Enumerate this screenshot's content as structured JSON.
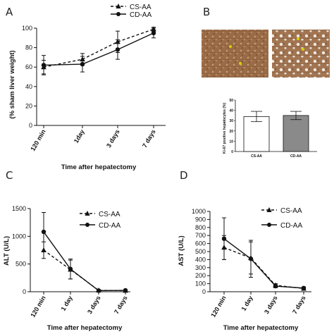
{
  "panels": {
    "A": {
      "letter": "A",
      "legend": [
        "CS-AA",
        "CD-AA"
      ],
      "xlabel": "Time after hepatectomy",
      "ylabel": "(% sham liver weight)"
    },
    "B": {
      "letter": "B",
      "ylabel": "Ki-67 positive hepatocytes (%)"
    },
    "C": {
      "letter": "C",
      "legend": [
        "CS-AA",
        "CD-AA"
      ],
      "xlabel": "Time after hepatectomy",
      "ylabel": "ALT (U/L)"
    },
    "D": {
      "letter": "D",
      "legend": [
        "CS-AA",
        "CD-AA"
      ],
      "xlabel": "Time after hepatectomy",
      "ylabel": "AST (U/L)"
    }
  },
  "chart_data": [
    {
      "panel": "A",
      "type": "line",
      "categories": [
        "120 min",
        "1day",
        "3 days",
        "7 days"
      ],
      "series": [
        {
          "name": "CS-AA",
          "values": [
            60,
            68,
            86,
            99
          ],
          "err": [
            7,
            6,
            11,
            2
          ],
          "style": "dashed",
          "marker": "triangle"
        },
        {
          "name": "CD-AA",
          "values": [
            62,
            63,
            78,
            95
          ],
          "err": [
            10,
            8,
            10,
            5
          ],
          "style": "solid",
          "marker": "circle"
        }
      ],
      "xlabel": "Time after hepatectomy",
      "ylabel": "(% sham liver weight)",
      "ylim": [
        0,
        100
      ],
      "yticks": [
        0,
        20,
        40,
        60,
        80,
        100
      ],
      "legend": "top-center"
    },
    {
      "panel": "B",
      "type": "bar",
      "categories": [
        "CS-AA",
        "CD-AA"
      ],
      "values": [
        34,
        35
      ],
      "err": [
        5,
        4
      ],
      "colors": [
        "#ffffff",
        "#8a8a8a"
      ],
      "ylabel": "Ki-67 positive hepatocytes (%)",
      "ylim": [
        0,
        50
      ],
      "yticks": [
        0,
        10,
        20,
        30,
        40,
        50
      ]
    },
    {
      "panel": "C",
      "type": "line",
      "categories": [
        "120 min",
        "1 day",
        "3 days",
        "7 days"
      ],
      "series": [
        {
          "name": "CS-AA",
          "values": [
            750,
            400,
            25,
            20
          ],
          "err": [
            150,
            170,
            10,
            10
          ],
          "style": "dashed",
          "marker": "triangle"
        },
        {
          "name": "CD-AA",
          "values": [
            1080,
            410,
            20,
            25
          ],
          "err": [
            350,
            180,
            10,
            10
          ],
          "style": "solid",
          "marker": "circle"
        }
      ],
      "xlabel": "Time after hepatectomy",
      "ylabel": "ALT (U/L)",
      "ylim": [
        0,
        1500
      ],
      "yticks": [
        0,
        500,
        1000,
        1500
      ],
      "legend": "right"
    },
    {
      "panel": "D",
      "type": "line",
      "categories": [
        "120 min",
        "1 day",
        "3 days",
        "7 days"
      ],
      "series": [
        {
          "name": "CS-AA",
          "values": [
            550,
            420,
            80,
            40
          ],
          "err": [
            150,
            200,
            20,
            15
          ],
          "style": "dashed",
          "marker": "triangle"
        },
        {
          "name": "CD-AA",
          "values": [
            660,
            410,
            70,
            45
          ],
          "err": [
            260,
            230,
            20,
            15
          ],
          "style": "solid",
          "marker": "circle"
        }
      ],
      "xlabel": "Time after hepatectomy",
      "ylabel": "AST (U/L)",
      "ylim": [
        0,
        1000
      ],
      "yticks": [
        0,
        100,
        200,
        300,
        400,
        500,
        600,
        700,
        800,
        900,
        1000
      ],
      "legend": "right"
    }
  ]
}
